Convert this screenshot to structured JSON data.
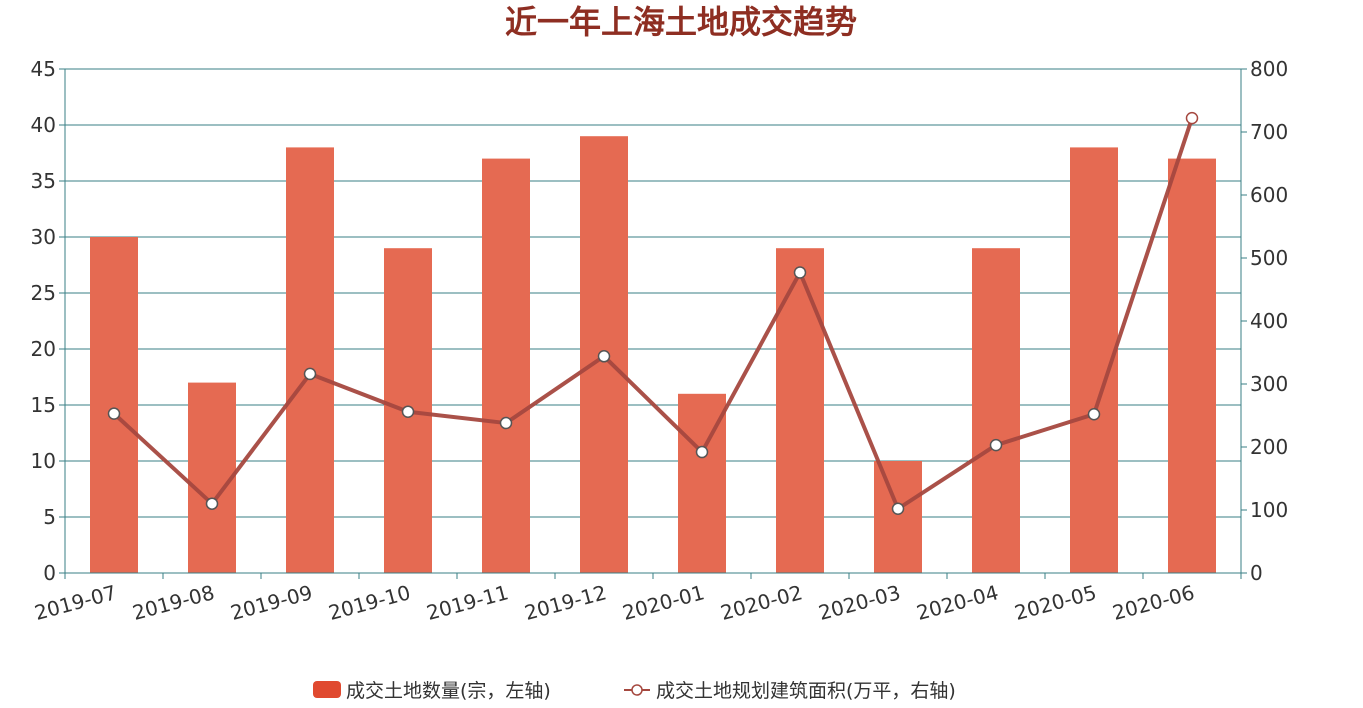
{
  "chart_data": {
    "type": "bar",
    "title": "近一年上海土地成交趋势",
    "categories": [
      "2019-07",
      "2019-08",
      "2019-09",
      "2019-10",
      "2019-11",
      "2019-12",
      "2020-01",
      "2020-02",
      "2020-03",
      "2020-04",
      "2020-05",
      "2020-06"
    ],
    "series": [
      {
        "name": "成交土地数量(宗，左轴)",
        "type": "bar",
        "axis": "left",
        "values": [
          30,
          17,
          38,
          29,
          37,
          39,
          16,
          29,
          10,
          29,
          38,
          37
        ]
      },
      {
        "name": "成交土地规划建筑面积(万平，右轴)",
        "type": "line",
        "axis": "right",
        "values": [
          253,
          110,
          316,
          256,
          238,
          344,
          192,
          477,
          102,
          203,
          252,
          722
        ]
      }
    ],
    "y_left": {
      "min": 0,
      "max": 45,
      "ticks": [
        "0",
        "5",
        "10",
        "15",
        "20",
        "25",
        "30",
        "35",
        "40",
        "45"
      ]
    },
    "y_right": {
      "min": 0,
      "max": 800,
      "ticks": [
        "0",
        "100",
        "200",
        "300",
        "400",
        "500",
        "600",
        "700",
        "800"
      ]
    },
    "grid": true,
    "legend_position": "bottom",
    "colors": {
      "title": "#8e2e22",
      "bar": "#e56a52",
      "line": "#a5483f",
      "axis": "#3a7f86",
      "grid": "#3a7f86",
      "legend_bar": "#e0492f"
    }
  }
}
